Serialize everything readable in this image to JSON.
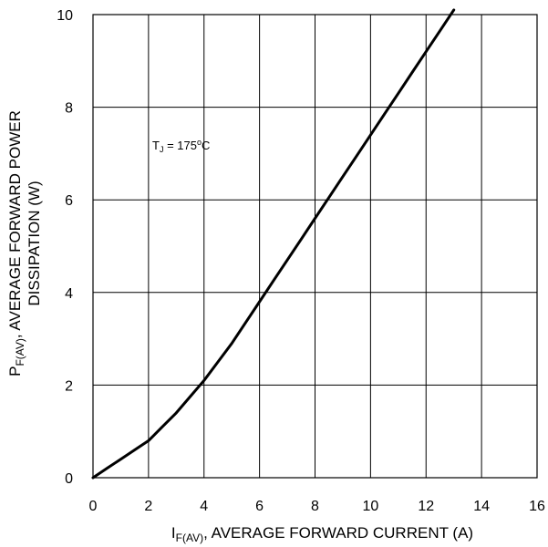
{
  "chart_data": {
    "type": "line",
    "xlim": [
      0,
      16
    ],
    "ylim": [
      0,
      10
    ],
    "x_ticks": [
      "0",
      "2",
      "4",
      "6",
      "8",
      "10",
      "12",
      "14",
      "16"
    ],
    "y_ticks": [
      "0",
      "2",
      "4",
      "6",
      "8",
      "10"
    ],
    "grid": true,
    "xlabel": {
      "symbol": "I",
      "subscript": "F(AV)",
      "text": ", AVERAGE FORWARD CURRENT (A)"
    },
    "ylabel": {
      "symbol": "P",
      "subscript": "F(AV)",
      "line1": ", AVERAGE FORWARD POWER",
      "line2": "DISSIPATION (W)"
    },
    "annotation": {
      "symbol": "T",
      "subscript": "J",
      "text": " = 175",
      "superscript": "o",
      "unit": "C"
    },
    "series": [
      {
        "color": "#000000",
        "points": [
          [
            0,
            0
          ],
          [
            0.5,
            0.2
          ],
          [
            1,
            0.4
          ],
          [
            1.5,
            0.6
          ],
          [
            2,
            0.8
          ],
          [
            2.5,
            1.1
          ],
          [
            3,
            1.4
          ],
          [
            3.5,
            1.75
          ],
          [
            4,
            2.1
          ],
          [
            4.5,
            2.5
          ],
          [
            5,
            2.9
          ],
          [
            5.5,
            3.35
          ],
          [
            6,
            3.8
          ],
          [
            6.5,
            4.25
          ],
          [
            7,
            4.7
          ],
          [
            7.5,
            5.15
          ],
          [
            8,
            5.6
          ],
          [
            8.5,
            6.05
          ],
          [
            9,
            6.5
          ],
          [
            9.5,
            6.95
          ],
          [
            10,
            7.4
          ],
          [
            10.5,
            7.85
          ],
          [
            11,
            8.3
          ],
          [
            11.5,
            8.75
          ],
          [
            12,
            9.2
          ],
          [
            12.5,
            9.65
          ],
          [
            13,
            10.1
          ]
        ]
      }
    ]
  }
}
